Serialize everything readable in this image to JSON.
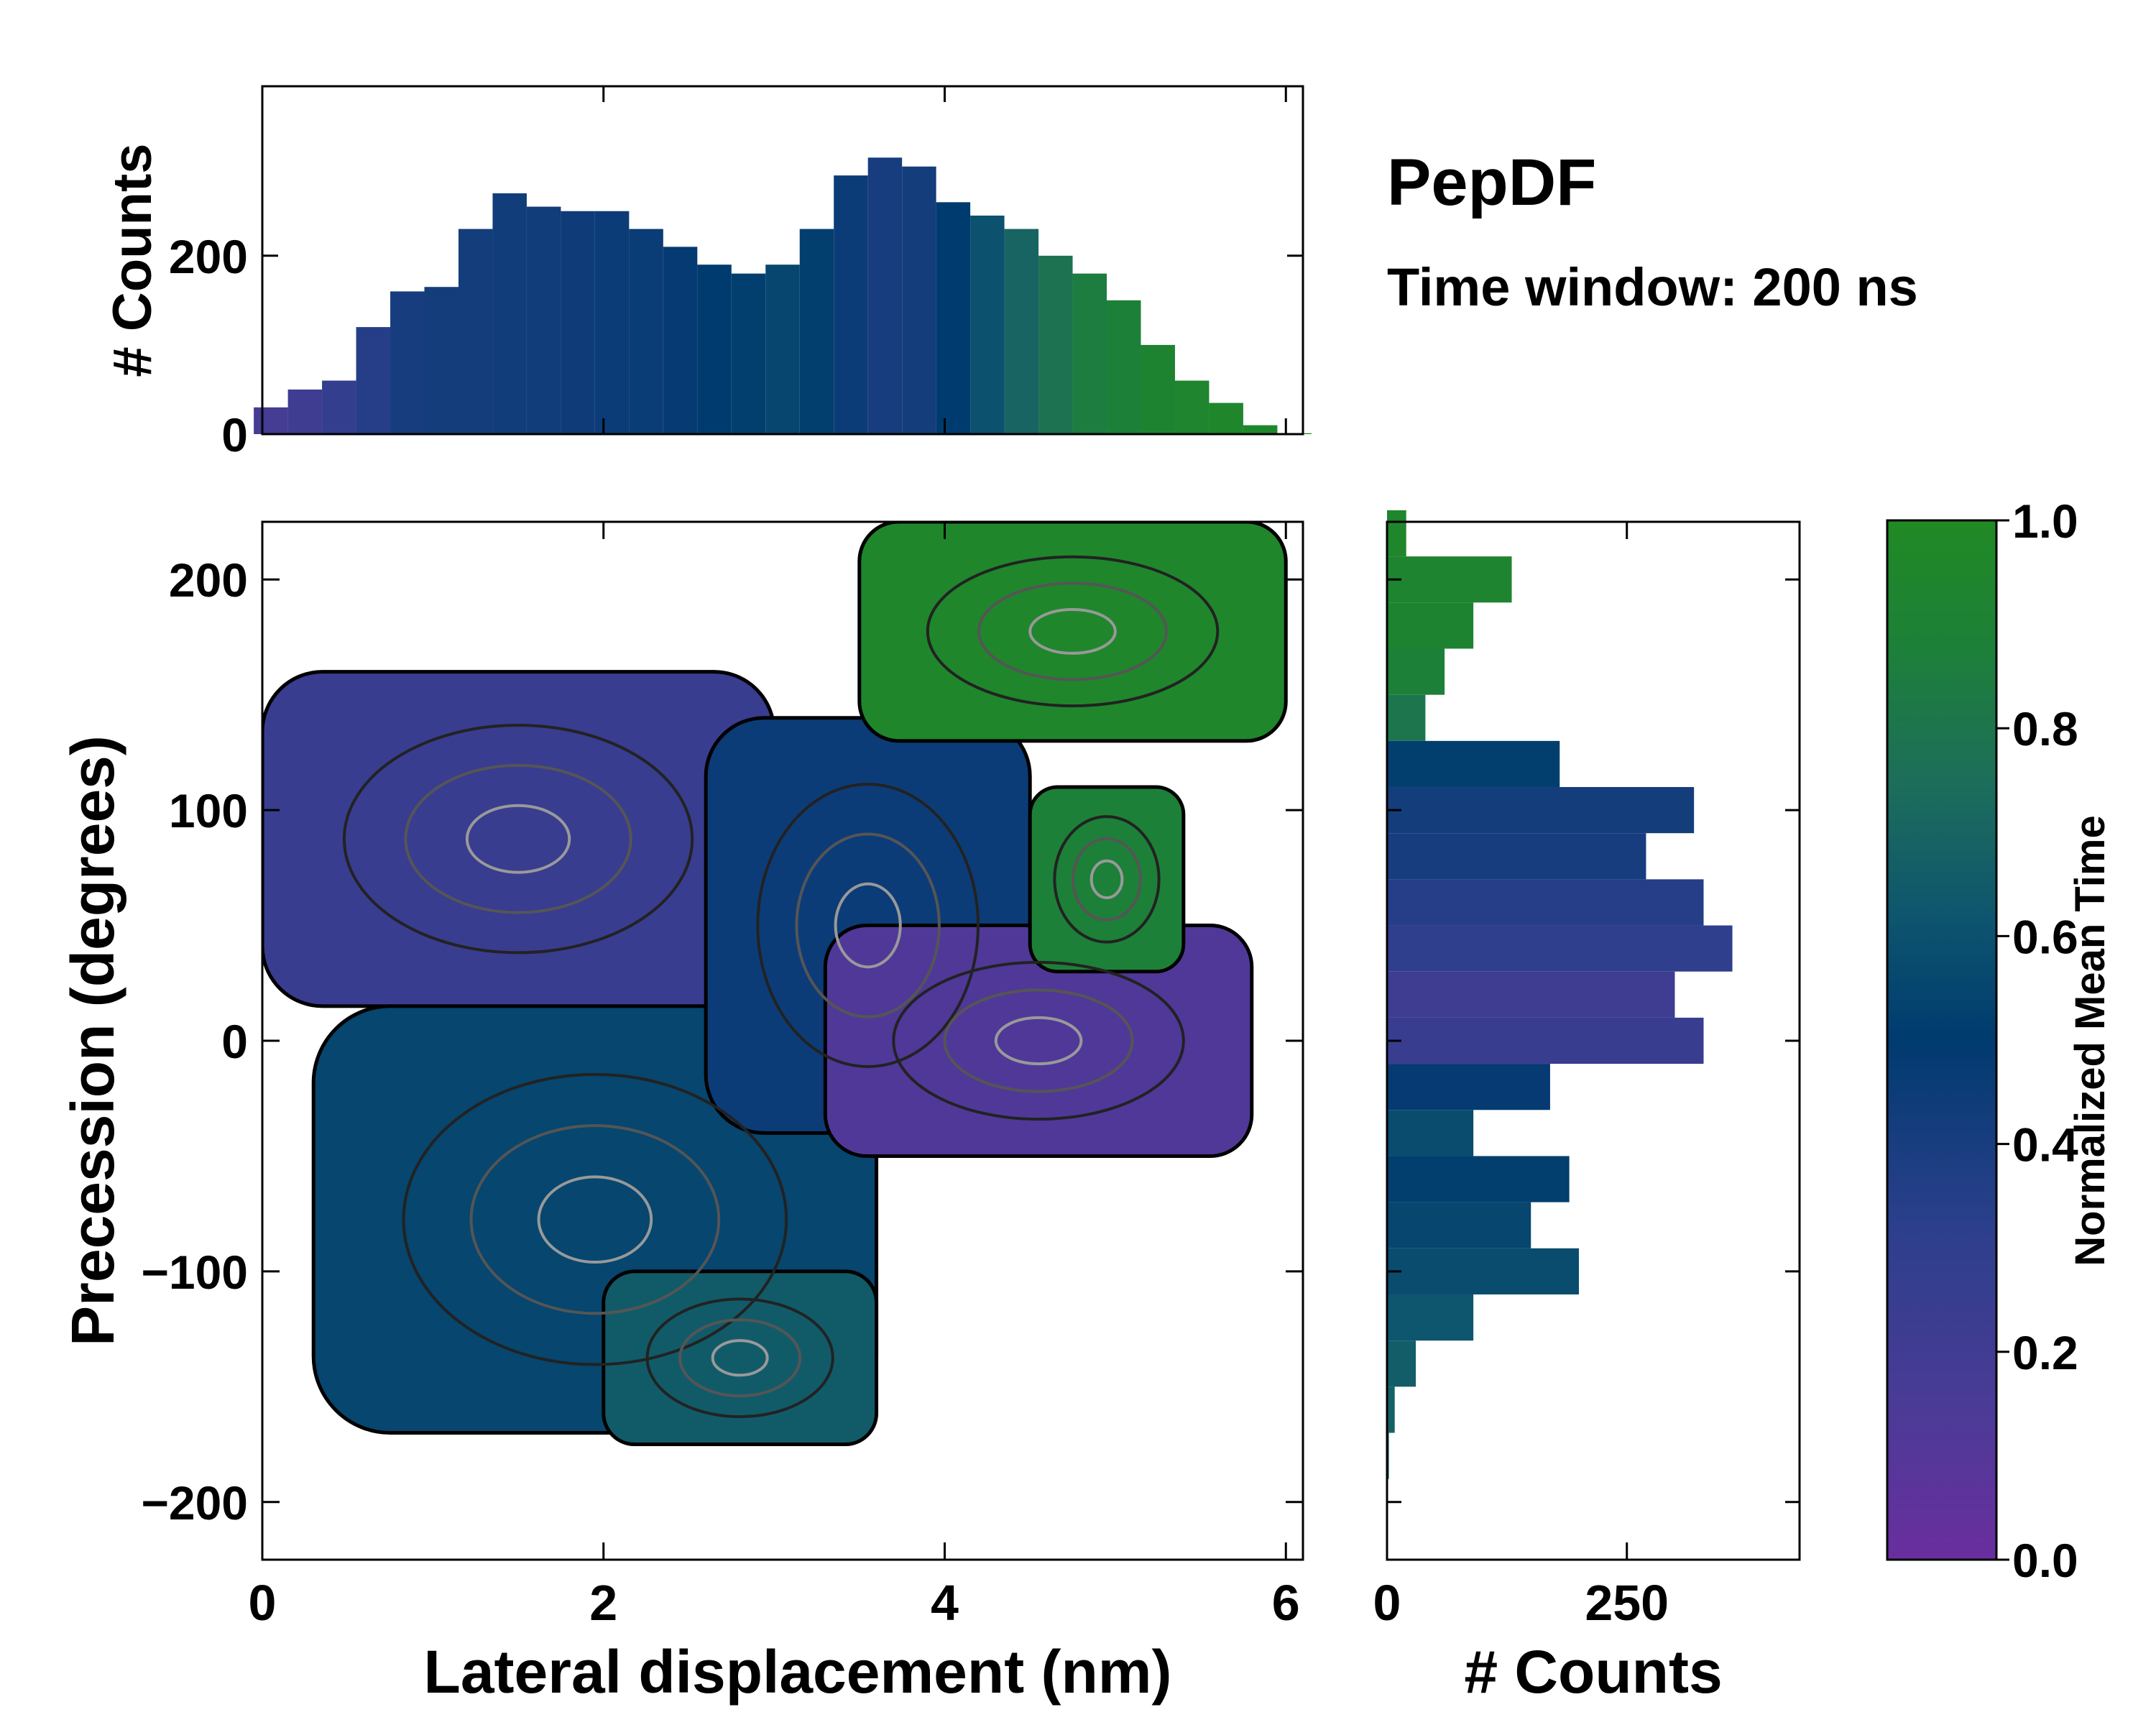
{
  "title": "PepDF",
  "subtitle": "Time window: 200 ns",
  "chart_data": [
    {
      "type": "bar",
      "name": "top-marginal-histogram",
      "ylabel": "# Counts",
      "xlim": [
        0,
        6.1
      ],
      "ylim": [
        0,
        390
      ],
      "yticks": [
        0,
        200
      ],
      "x": [
        0.05,
        0.25,
        0.45,
        0.65,
        0.85,
        1.05,
        1.25,
        1.45,
        1.65,
        1.85,
        2.05,
        2.25,
        2.45,
        2.65,
        2.85,
        3.05,
        3.25,
        3.45,
        3.65,
        3.85,
        4.05,
        4.25,
        4.45,
        4.65,
        4.85,
        5.05,
        5.25,
        5.45,
        5.65,
        5.85,
        6.05
      ],
      "values": [
        30,
        50,
        60,
        120,
        160,
        165,
        230,
        270,
        255,
        250,
        250,
        230,
        210,
        190,
        180,
        190,
        230,
        290,
        310,
        300,
        260,
        245,
        230,
        200,
        180,
        150,
        100,
        60,
        35,
        10,
        1
      ],
      "colors": [
        0.18,
        0.22,
        0.28,
        0.35,
        0.4,
        0.42,
        0.42,
        0.43,
        0.43,
        0.44,
        0.45,
        0.46,
        0.48,
        0.5,
        0.52,
        0.55,
        0.52,
        0.45,
        0.4,
        0.42,
        0.5,
        0.6,
        0.7,
        0.78,
        0.85,
        0.88,
        0.92,
        0.94,
        0.95,
        0.96,
        0.96
      ]
    },
    {
      "type": "heatmap",
      "name": "main-2d-histogram",
      "xlabel": "Lateral displacement (nm)",
      "ylabel": "Precession (degrees)",
      "xlim": [
        0,
        6.1
      ],
      "ylim": [
        -225,
        225
      ],
      "xticks": [
        0,
        2,
        4,
        6
      ],
      "yticks": [
        -200,
        -100,
        0,
        100,
        200
      ],
      "regions": [
        {
          "label": "upper-left cluster",
          "x": [
            0,
            3.0
          ],
          "y": [
            15,
            160
          ],
          "mean_time": 0.25
        },
        {
          "label": "lower-left cluster",
          "x": [
            0.3,
            3.6
          ],
          "y": [
            -170,
            15
          ],
          "mean_time": 0.55
        },
        {
          "label": "center cluster",
          "x": [
            2.6,
            4.5
          ],
          "y": [
            -40,
            140
          ],
          "mean_time": 0.45
        },
        {
          "label": "center-right low-precession lobe",
          "x": [
            3.3,
            5.8
          ],
          "y": [
            -50,
            50
          ],
          "mean_time": 0.12
        },
        {
          "label": "right mid cluster",
          "x": [
            4.5,
            5.4
          ],
          "y": [
            30,
            110
          ],
          "mean_time": 0.88
        },
        {
          "label": "upper-right cluster",
          "x": [
            3.5,
            6.0
          ],
          "y": [
            130,
            225
          ],
          "mean_time": 0.95
        },
        {
          "label": "bottom tail",
          "x": [
            2.0,
            3.6
          ],
          "y": [
            -175,
            -100
          ],
          "mean_time": 0.65
        }
      ]
    },
    {
      "type": "bar",
      "orientation": "horizontal",
      "name": "right-marginal-histogram",
      "xlabel": "# Counts",
      "xlim": [
        0,
        430
      ],
      "xticks": [
        0,
        250
      ],
      "ylim": [
        -225,
        225
      ],
      "y": [
        220,
        200,
        180,
        160,
        140,
        120,
        100,
        80,
        60,
        40,
        20,
        0,
        -20,
        -40,
        -60,
        -80,
        -100,
        -120,
        -140,
        -160,
        -180
      ],
      "values": [
        20,
        130,
        90,
        60,
        40,
        180,
        320,
        270,
        330,
        360,
        300,
        330,
        170,
        90,
        190,
        150,
        200,
        90,
        30,
        8,
        2
      ],
      "colors": [
        0.95,
        0.93,
        0.92,
        0.88,
        0.8,
        0.52,
        0.42,
        0.4,
        0.35,
        0.3,
        0.22,
        0.25,
        0.48,
        0.58,
        0.52,
        0.55,
        0.58,
        0.62,
        0.66,
        0.68,
        0.7
      ]
    }
  ],
  "colorbar": {
    "label": "Normalized Mean Time",
    "range": [
      0.0,
      1.0
    ],
    "ticks": [
      "0.0",
      "0.2",
      "0.4",
      "0.6",
      "0.8",
      "1.0"
    ],
    "stops": [
      "#6a2e9e",
      "#4a3b96",
      "#2c3f8c",
      "#003b6f",
      "#0e556e",
      "#1d6e5a",
      "#1d8038",
      "#208a24"
    ]
  }
}
